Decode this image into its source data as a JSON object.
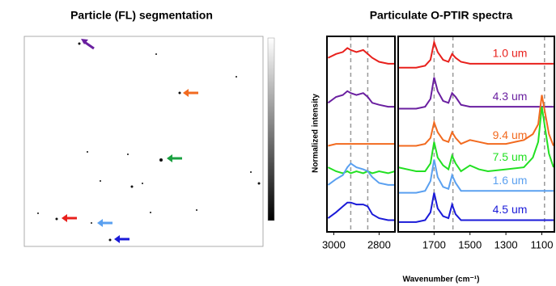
{
  "image_panel": {
    "title": "Particle (FL) segmentation"
  },
  "chart_data": [
    {
      "type": "line",
      "y_label": "Normalized intensity",
      "x": [
        3025,
        2990,
        2960,
        2940,
        2925,
        2900,
        2870,
        2850,
        2830,
        2800,
        2760,
        2730
      ],
      "xlim": [
        3030,
        2730
      ],
      "xticks": [
        3000,
        2800
      ],
      "ylim": [
        0,
        100
      ],
      "vlines": [
        2925,
        2850
      ],
      "series": [
        {
          "color": "#e8201c",
          "values": [
            89,
            91,
            92,
            94,
            93,
            92,
            93,
            91,
            89,
            87,
            86,
            86
          ]
        },
        {
          "color": "#6a1fa0",
          "values": [
            66,
            69,
            70,
            72,
            71,
            70,
            71,
            69,
            66,
            65,
            64,
            64
          ]
        },
        {
          "color": "#f26a1f",
          "values": [
            44,
            45,
            45,
            45,
            45,
            45,
            45,
            45,
            45,
            45,
            45,
            45
          ]
        },
        {
          "color": "#22e022",
          "values": [
            33,
            31,
            30,
            31,
            30,
            31,
            30,
            31,
            30,
            31,
            30,
            31
          ]
        },
        {
          "color": "#5aa0f0",
          "values": [
            24,
            27,
            29,
            33,
            35,
            33,
            32,
            31,
            28,
            25,
            24,
            24
          ]
        },
        {
          "color": "#1a1ad8",
          "values": [
            7,
            10,
            13,
            15,
            15,
            14,
            14,
            13,
            9,
            7,
            6,
            6
          ]
        }
      ]
    },
    {
      "type": "line",
      "title": "Particulate O-PTIR spectra",
      "x_label": "Wavenumber (cm⁻¹)",
      "x": [
        1900,
        1800,
        1750,
        1720,
        1700,
        1680,
        1650,
        1620,
        1600,
        1580,
        1550,
        1500,
        1450,
        1400,
        1300,
        1200,
        1150,
        1120,
        1100,
        1080,
        1060,
        1035
      ],
      "xlim": [
        1900,
        1030
      ],
      "xticks": [
        1700,
        1500,
        1300,
        1100
      ],
      "ylim": [
        0,
        100
      ],
      "vlines": [
        1700,
        1595,
        1085
      ],
      "series": [
        {
          "name": "1.0 um",
          "color": "#e8201c",
          "values": [
            84,
            84,
            85,
            88,
            97,
            92,
            88,
            87,
            91,
            89,
            87,
            86,
            86,
            86,
            86,
            86,
            86,
            86,
            86,
            86,
            86,
            86
          ]
        },
        {
          "name": "4.3 um",
          "color": "#6a1fa0",
          "values": [
            63,
            63,
            64,
            68,
            79,
            72,
            67,
            66,
            71,
            69,
            65,
            64,
            64,
            64,
            64,
            64,
            64,
            64,
            64,
            64,
            64,
            64
          ]
        },
        {
          "name": "9.4 um",
          "color": "#f26a1f",
          "values": [
            44,
            44,
            45,
            48,
            56,
            51,
            47,
            46,
            51,
            48,
            45,
            47,
            46,
            45,
            45,
            47,
            50,
            55,
            70,
            60,
            50,
            44
          ]
        },
        {
          "name": "7.5 um",
          "color": "#22e022",
          "values": [
            33,
            31,
            31,
            35,
            46,
            38,
            34,
            32,
            39,
            35,
            31,
            34,
            32,
            31,
            32,
            33,
            38,
            46,
            64,
            52,
            40,
            33
          ]
        },
        {
          "name": "1.6 um",
          "color": "#5aa0f0",
          "values": [
            20,
            20,
            21,
            26,
            37,
            28,
            23,
            22,
            29,
            25,
            21,
            21,
            21,
            21,
            21,
            21,
            21,
            21,
            21,
            21,
            21,
            21
          ]
        },
        {
          "name": "4.5 um",
          "color": "#1a1ad8",
          "values": [
            5,
            5,
            6,
            10,
            20,
            12,
            8,
            7,
            14,
            9,
            6,
            6,
            6,
            6,
            6,
            6,
            6,
            6,
            6,
            6,
            6,
            6
          ]
        }
      ]
    }
  ]
}
